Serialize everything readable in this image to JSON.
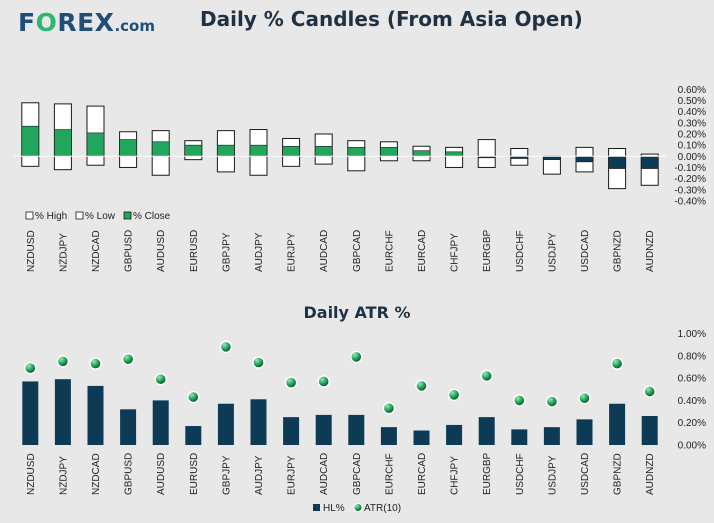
{
  "brand": {
    "name_pre": "F",
    "name_o": "O",
    "name_post": "REX",
    "suffix": ".com"
  },
  "colors": {
    "green": "#21a65c",
    "navy": "#0d3a55",
    "panel": "#ffffff"
  },
  "chart_data": [
    {
      "type": "bar",
      "title": "Daily % Candles (From Asia Open)",
      "categories": [
        "NZDUSD",
        "NZDJPY",
        "NZDCAD",
        "GBPUSD",
        "AUDUSD",
        "EURUSD",
        "GBPJPY",
        "AUDJPY",
        "EURJPY",
        "AUDCAD",
        "GBPCAD",
        "EURCHF",
        "EURCAD",
        "CHFJPY",
        "EURGBP",
        "USDCHF",
        "USDJPY",
        "USDCAD",
        "GBPNZD",
        "AUDNZD"
      ],
      "series": [
        {
          "name": "% High",
          "values": [
            0.48,
            0.47,
            0.45,
            0.22,
            0.23,
            0.14,
            0.23,
            0.24,
            0.16,
            0.2,
            0.14,
            0.13,
            0.09,
            0.08,
            0.15,
            0.07,
            0.0,
            0.08,
            0.07,
            0.02
          ]
        },
        {
          "name": "% Low",
          "values": [
            -0.09,
            -0.12,
            -0.08,
            -0.1,
            -0.17,
            -0.03,
            -0.14,
            -0.17,
            -0.09,
            -0.07,
            -0.13,
            -0.04,
            -0.04,
            -0.1,
            -0.1,
            -0.08,
            -0.16,
            -0.14,
            -0.29,
            -0.26
          ]
        },
        {
          "name": "% Close",
          "values": [
            0.27,
            0.24,
            0.21,
            0.15,
            0.13,
            0.1,
            0.1,
            0.1,
            0.09,
            0.09,
            0.08,
            0.08,
            0.05,
            0.04,
            -0.01,
            -0.02,
            -0.03,
            -0.05,
            -0.11,
            -0.11
          ]
        }
      ],
      "ylim": [
        -0.4,
        0.6
      ],
      "yticks": [
        "0.60%",
        "0.50%",
        "0.40%",
        "0.30%",
        "0.20%",
        "0.10%",
        "0.00%",
        "-0.10%",
        "-0.20%",
        "-0.30%",
        "-0.40%"
      ],
      "legend": [
        "% High",
        "% Low",
        "% Close"
      ],
      "legend_position": "bottom-left"
    },
    {
      "type": "bar",
      "title": "Daily ATR %",
      "categories": [
        "NZDUSD",
        "NZDJPY",
        "NZDCAD",
        "GBPUSD",
        "AUDUSD",
        "EURUSD",
        "GBPJPY",
        "AUDJPY",
        "EURJPY",
        "AUDCAD",
        "GBPCAD",
        "EURCHF",
        "EURCAD",
        "CHFJPY",
        "EURGBP",
        "USDCHF",
        "USDJPY",
        "USDCAD",
        "GBPNZD",
        "AUDNZD"
      ],
      "series": [
        {
          "name": "HL%",
          "values": [
            0.57,
            0.59,
            0.53,
            0.32,
            0.4,
            0.17,
            0.37,
            0.41,
            0.25,
            0.27,
            0.27,
            0.16,
            0.13,
            0.18,
            0.25,
            0.14,
            0.16,
            0.23,
            0.37,
            0.26
          ]
        },
        {
          "name": "ATR(10)",
          "values": [
            0.69,
            0.75,
            0.73,
            0.77,
            0.59,
            0.43,
            0.88,
            0.74,
            0.56,
            0.57,
            0.79,
            0.33,
            0.53,
            0.45,
            0.62,
            0.4,
            0.39,
            0.42,
            0.73,
            0.48
          ]
        }
      ],
      "ylim": [
        0,
        1.0
      ],
      "yticks": [
        "1.00%",
        "0.80%",
        "0.60%",
        "0.40%",
        "0.20%",
        "0.00%"
      ],
      "legend": [
        "HL%",
        "ATR(10)"
      ],
      "legend_position": "bottom-center"
    }
  ]
}
